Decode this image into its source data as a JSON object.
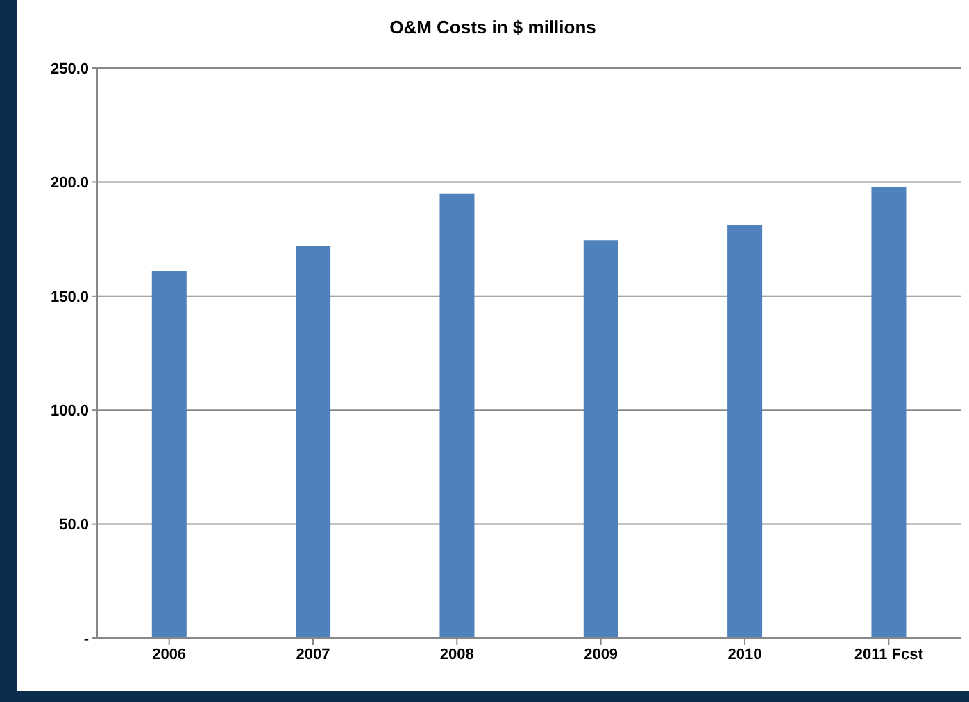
{
  "chart_data": {
    "type": "bar",
    "title": "O&M Costs in $ millions",
    "categories": [
      "2006",
      "2007",
      "2008",
      "2009",
      "2010",
      "2011 Fcst"
    ],
    "values": [
      161,
      172,
      195,
      174.5,
      181,
      198
    ],
    "color": "#4f81bd",
    "ylim": [
      0,
      250
    ],
    "yticks": [
      {
        "value": 0,
        "label": "-"
      },
      {
        "value": 50,
        "label": "50.0"
      },
      {
        "value": 100,
        "label": "100.0"
      },
      {
        "value": 150,
        "label": "150.0"
      },
      {
        "value": 200,
        "label": "200.0"
      },
      {
        "value": 250,
        "label": "250.0"
      }
    ],
    "grid": "y",
    "legend": false
  }
}
